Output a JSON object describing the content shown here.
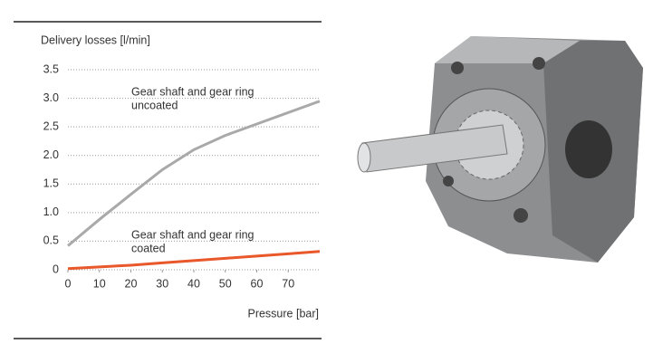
{
  "chart_data": {
    "type": "line",
    "y_label": "Delivery losses [l/min]",
    "x_label": "Pressure [bar]",
    "x": [
      0,
      10,
      20,
      30,
      40,
      50,
      60,
      70,
      80
    ],
    "series": [
      {
        "name": "Gear shaft and gear ring uncoated",
        "color": "#a9a9a9",
        "values": [
          0.42,
          0.88,
          1.32,
          1.75,
          2.1,
          2.35,
          2.55,
          2.75,
          2.95
        ]
      },
      {
        "name": "Gear shaft and gear ring coated",
        "color": "#e8582a",
        "values": [
          0.02,
          0.05,
          0.08,
          0.12,
          0.16,
          0.2,
          0.24,
          0.28,
          0.32
        ]
      }
    ],
    "annotations": [
      {
        "lines": [
          "Gear shaft and gear ring",
          "uncoated"
        ]
      },
      {
        "lines": [
          "Gear shaft and gear ring",
          "coated"
        ]
      }
    ],
    "xlim": [
      0,
      80
    ],
    "xticks": [
      0,
      10,
      20,
      30,
      40,
      50,
      60,
      70
    ],
    "ylim": [
      0,
      3.5
    ],
    "yticks": [
      0,
      0.5,
      {
        "value": 1,
        "label": "1.0"
      },
      1.5,
      {
        "value": 2,
        "label": "2.0"
      },
      2.5,
      {
        "value": 3,
        "label": "3.0"
      },
      3.5
    ],
    "grid": true
  }
}
